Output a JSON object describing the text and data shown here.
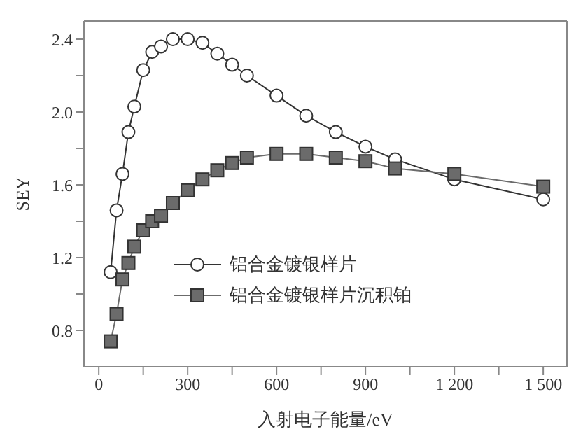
{
  "chart_data": {
    "type": "line",
    "xlabel": "入射电子能量/eV",
    "ylabel": "SEY",
    "xlim": [
      -50,
      1580
    ],
    "ylim": [
      0.6,
      2.5
    ],
    "xticks": [
      0,
      {
        "value": 150,
        "label": null
      },
      300,
      {
        "value": 450,
        "label": null
      },
      600,
      {
        "value": 750,
        "label": null
      },
      900,
      {
        "value": 1050,
        "label": null
      },
      {
        "value": 1200,
        "label": "1 200"
      },
      {
        "value": 1350,
        "label": null
      },
      {
        "value": 1500,
        "label": "1 500"
      }
    ],
    "yticks": [
      {
        "value": 0.8,
        "label": "0.8"
      },
      {
        "value": 1.0,
        "label": null
      },
      {
        "value": 1.2,
        "label": "1.2"
      },
      {
        "value": 1.4,
        "label": null
      },
      {
        "value": 1.6,
        "label": "1.6"
      },
      {
        "value": 1.8,
        "label": null
      },
      {
        "value": 2.0,
        "label": "2.0"
      },
      {
        "value": 2.2,
        "label": null
      },
      {
        "value": 2.4,
        "label": "2.4"
      }
    ],
    "x": [
      40,
      60,
      80,
      100,
      120,
      150,
      180,
      210,
      250,
      300,
      350,
      400,
      450,
      500,
      600,
      700,
      800,
      900,
      1000,
      1200,
      1500
    ],
    "series": [
      {
        "name": "铝合金镀银样片",
        "color": "#333333",
        "marker": "circle",
        "values": [
          1.12,
          1.46,
          1.66,
          1.89,
          2.03,
          2.23,
          2.33,
          2.36,
          2.4,
          2.4,
          2.38,
          2.32,
          2.26,
          2.2,
          2.09,
          1.98,
          1.89,
          1.81,
          1.74,
          1.63,
          1.52
        ]
      },
      {
        "name": "铝合金镀银样片沉积铂",
        "color": "#6b6b6b",
        "marker": "square",
        "values": [
          0.74,
          0.89,
          1.08,
          1.17,
          1.26,
          1.35,
          1.4,
          1.43,
          1.5,
          1.57,
          1.63,
          1.68,
          1.72,
          1.75,
          1.77,
          1.77,
          1.75,
          1.73,
          1.69,
          1.66,
          1.59
        ]
      }
    ],
    "legend": "bottom",
    "grid": false
  }
}
